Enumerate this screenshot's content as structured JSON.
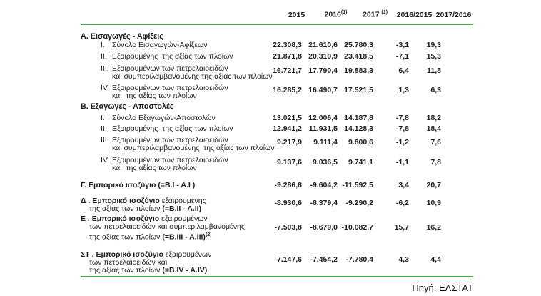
{
  "header": {
    "y2015": "2015",
    "y2016": "2016",
    "sup2016": "(1)",
    "y2017": "2017",
    "sup2017": "(1)",
    "ratio1": "2016/2015",
    "ratio2": "2017/2016"
  },
  "sections": [
    {
      "title": "Α. Εισαγωγές - Αφίξεις",
      "rows": [
        {
          "num": "I.",
          "line1": "Σύνολο Εισαγωγών-Αφίξεων",
          "v": [
            "22.308,3",
            "21.610,6",
            "25.780,3",
            "-3,1",
            "19,3"
          ]
        },
        {
          "num": "II.",
          "line1": "Εξαιρουμένης  της αξίας των πλοίων",
          "v": [
            "21.871,8",
            "20.310,9",
            "23.418,5",
            "-7,1",
            "15,3"
          ]
        },
        {
          "num": "III.",
          "line1": "Εξαιρουμένων των πετρελαιοειδών",
          "line2": "και συμπεριλαμβανομένης της αξίας των πλοίων",
          "v": [
            "16.721,7",
            "17.790,4",
            "19.883,3",
            "6,4",
            "11,8"
          ]
        },
        {
          "num": "IV.",
          "line1": "Εξαιρουμένων των πετρελαιοειδών",
          "line2": "και  της αξίας των πλοίων",
          "v": [
            "16.285,2",
            "16.490,7",
            "17.521,5",
            "1,3",
            "6,3"
          ]
        }
      ]
    },
    {
      "title": "Β. Εξαγωγές - Αποστολές",
      "rows": [
        {
          "num": "I.",
          "line1": "Σύνολο Εξαγωγών-Αποστολών",
          "v": [
            "13.021,5",
            "12.006,4",
            "14.187,8",
            "-7,8",
            "18,2"
          ]
        },
        {
          "num": "II.",
          "line1": "Εξαιρουμένης  της αξίας των πλοίων",
          "v": [
            "12.941,2",
            "11.931,5",
            "14.128,3",
            "-7,8",
            "18,4"
          ]
        },
        {
          "num": "III.",
          "line1": "Εξαιρουμένων των πετρελαιοειδών",
          "line2": "και συμπεριλαμβανομένης  της αξίας των πλοίων",
          "v": [
            "9.217,9",
            "9.111,4",
            "9.800,6",
            "-1,2",
            "7,6"
          ]
        },
        {
          "num": "IV.",
          "line1": "Εξαιρουμένων των πετρελαιοειδών",
          "line2": "και  της αξίας των πλοίων",
          "v": [
            "9.137,6",
            "9.036,5",
            "9.741,1",
            "-1,1",
            "7,8"
          ]
        }
      ]
    }
  ],
  "summary": [
    {
      "lead": "Γ. Εμπορικό ισοζύγιο (=B.I - A.I )",
      "rest": "",
      "v": [
        "-9.286,8",
        "-9.604,2",
        "-11.592,5",
        "3,4",
        "20,7"
      ]
    },
    {
      "lead": "Δ . Εμπορικό ισοζύγιο",
      "rest": " εξαιρουμένης",
      "line2reg": "της αξίας των πλοίων ",
      "formula": "(=B.II - A.II)",
      "v": [
        "-8.930,6",
        "-8.379,4",
        "-9.290,2",
        "-6,2",
        "10,9"
      ]
    },
    {
      "lead": "Ε . Εμπορικό ισοζύγιο",
      "rest": " εξαιρουμένων",
      "line2": "των πετρελαιοειδών και συμπεριλαμβανομένης",
      "line3reg": "της αξίας των πλοίων ",
      "formula": "(=B.III - A.III)",
      "sup": "(2)",
      "v": [
        "-7.503,8",
        "-8.679,0",
        "-10.082,7",
        "15,7",
        "16,2"
      ]
    },
    {
      "lead": "ΣΤ . Εμπορικό ισοζύγιο",
      "rest": " εξαιρουμένων",
      "line2": "των πετρελαιοειδών και",
      "line3reg": "της αξίας των πλοίων ",
      "formula": "(=B.IV - A.IV)",
      "v": [
        "-7.147,6",
        "-7.454,2",
        "-7.780,4",
        "4,3",
        "4,4"
      ]
    }
  ],
  "source": "Πηγή: ΕΛΣΤΑΤ",
  "colors": {
    "rule_green": "#4fa654"
  }
}
